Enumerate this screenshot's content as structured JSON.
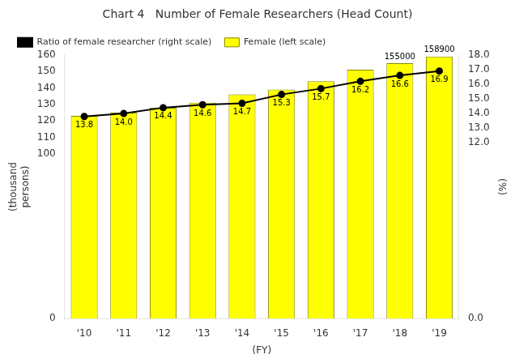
{
  "chart_data": {
    "type": "bar",
    "title": "Chart 4   Number of Female Researchers (Head Count)",
    "categories": [
      "'10",
      "'11",
      "'12",
      "'13",
      "'14",
      "'15",
      "'16",
      "'17",
      "'18",
      "'19"
    ],
    "series": [
      {
        "name": "Female (left scale)",
        "type": "bar",
        "color": "#FFFF00",
        "values": [
          123,
          125,
          128,
          131,
          136,
          139,
          144,
          151,
          155,
          159
        ]
      },
      {
        "name": "Ratio of female researcher (right scale)",
        "type": "line",
        "axis": "y2",
        "color": "#000000",
        "marker": "circle",
        "values": [
          13.8,
          14.0,
          14.4,
          14.6,
          14.7,
          15.3,
          15.7,
          16.2,
          16.6,
          16.9
        ],
        "value_labels": [
          "13.8",
          "14.0",
          "14.4",
          "14.6",
          "14.7",
          "15.3",
          "15.7",
          "16.2",
          "16.6",
          "16.9"
        ],
        "data_labels": true
      }
    ],
    "xlabel": "(FY)",
    "ylabel": [
      "(thousand",
      "persons)"
    ],
    "y2label": "(%)",
    "ylim": [
      0,
      160
    ],
    "yticks": [
      0,
      100,
      110,
      120,
      130,
      140,
      150,
      160
    ],
    "y2lim": [
      0.0,
      18.0
    ],
    "y2ticks": [
      {
        "value": 0.0,
        "label": "0.0"
      },
      {
        "value": 12.0,
        "label": "12.0"
      },
      {
        "value": 13.0,
        "label": "13.0"
      },
      {
        "value": 14.0,
        "label": "14.0"
      },
      {
        "value": 15.0,
        "label": "15.0"
      },
      {
        "value": 16.0,
        "label": "16.0"
      },
      {
        "value": 17.0,
        "label": "17.0"
      },
      {
        "value": 18.0,
        "label": "18.0"
      }
    ],
    "annotations": [
      {
        "category": "'18",
        "text": "155000"
      },
      {
        "category": "'19",
        "text": "158900"
      }
    ],
    "grid": false,
    "legend": "upper left"
  }
}
